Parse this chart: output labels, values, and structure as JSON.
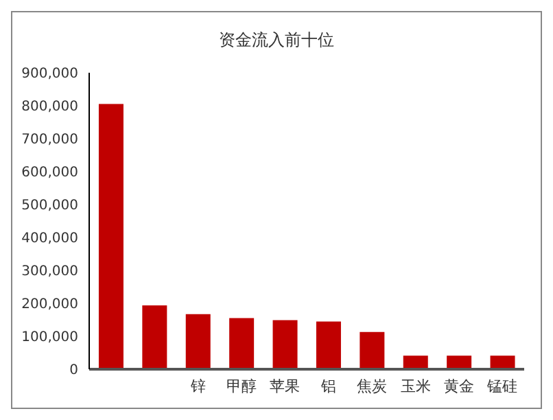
{
  "chart_data": {
    "type": "bar",
    "title": "资金流入前十位",
    "categories": [
      null,
      null,
      "锌",
      "甲醇",
      "苹果",
      "铝",
      "焦炭",
      "玉米",
      "黄金",
      "锰硅"
    ],
    "values": [
      805000,
      194000,
      167000,
      155000,
      149000,
      145000,
      113000,
      41000,
      41000,
      41000
    ],
    "color": "#c00000",
    "ylim": [
      0,
      900000
    ],
    "yticks": [
      0,
      {
        "value": 100000,
        "label": "100,000"
      },
      {
        "value": 200000,
        "label": "200,000"
      },
      {
        "value": 300000,
        "label": "300,000"
      },
      {
        "value": 400000,
        "label": "400,000"
      },
      {
        "value": 500000,
        "label": "500,000"
      },
      {
        "value": 600000,
        "label": "600,000"
      },
      {
        "value": 700000,
        "label": "700,000"
      },
      {
        "value": 800000,
        "label": "800,000"
      },
      {
        "value": 900000,
        "label": "900,000"
      }
    ],
    "grid": false,
    "legend": false
  }
}
